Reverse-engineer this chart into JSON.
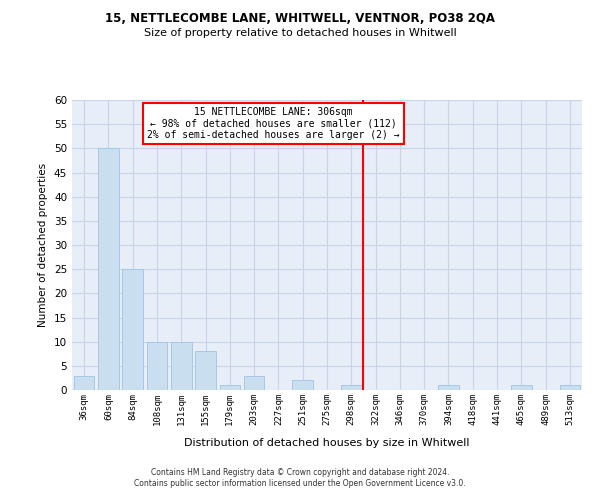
{
  "title1": "15, NETTLECOMBE LANE, WHITWELL, VENTNOR, PO38 2QA",
  "title2": "Size of property relative to detached houses in Whitwell",
  "xlabel": "Distribution of detached houses by size in Whitwell",
  "ylabel": "Number of detached properties",
  "categories": [
    "36sqm",
    "60sqm",
    "84sqm",
    "108sqm",
    "131sqm",
    "155sqm",
    "179sqm",
    "203sqm",
    "227sqm",
    "251sqm",
    "275sqm",
    "298sqm",
    "322sqm",
    "346sqm",
    "370sqm",
    "394sqm",
    "418sqm",
    "441sqm",
    "465sqm",
    "489sqm",
    "513sqm"
  ],
  "values": [
    3,
    50,
    25,
    10,
    10,
    8,
    1,
    3,
    0,
    2,
    0,
    1,
    0,
    0,
    0,
    1,
    0,
    0,
    1,
    0,
    1
  ],
  "bar_color": "#c9dff0",
  "bar_edge_color": "#a8c8e8",
  "grid_color": "#c8d4e8",
  "background_color": "#e8eef8",
  "annotation_text": "15 NETTLECOMBE LANE: 306sqm\n← 98% of detached houses are smaller (112)\n2% of semi-detached houses are larger (2) →",
  "footer": "Contains HM Land Registry data © Crown copyright and database right 2024.\nContains public sector information licensed under the Open Government Licence v3.0.",
  "ylim": [
    0,
    60
  ],
  "yticks": [
    0,
    5,
    10,
    15,
    20,
    25,
    30,
    35,
    40,
    45,
    50,
    55,
    60
  ]
}
